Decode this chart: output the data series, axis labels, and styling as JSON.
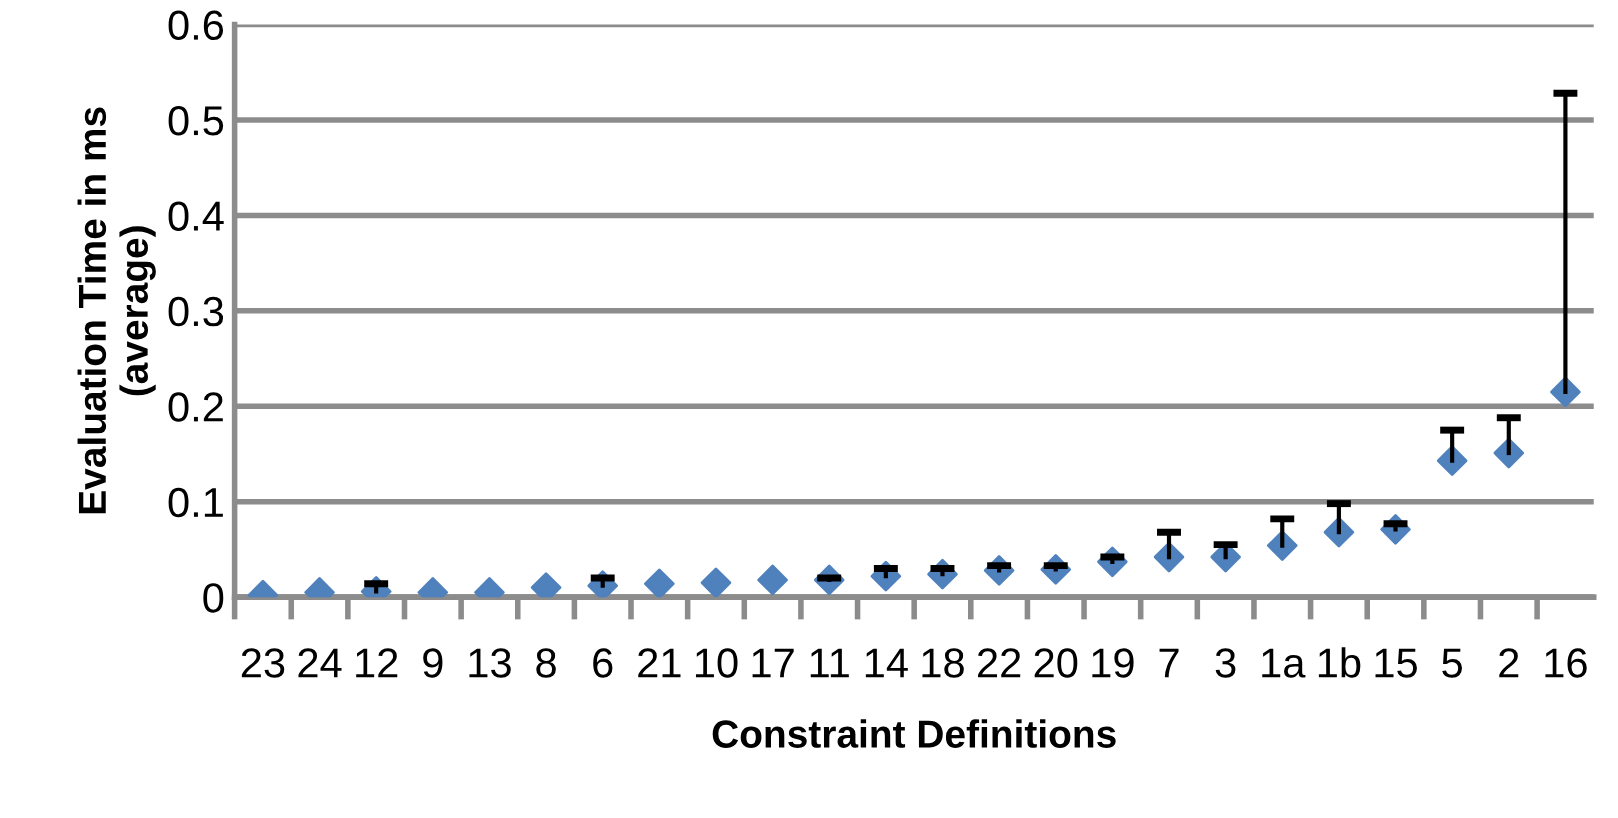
{
  "chart_data": {
    "type": "scatter",
    "xlabel": "Constraint Definitions",
    "ylabel": "Evaluation Time in ms\n(average)",
    "categories": [
      "23",
      "24",
      "12",
      "9",
      "13",
      "8",
      "6",
      "21",
      "10",
      "17",
      "11",
      "14",
      "18",
      "22",
      "20",
      "19",
      "7",
      "3",
      "1a",
      "1b",
      "15",
      "5",
      "2",
      "16"
    ],
    "values": [
      0.002,
      0.005,
      0.006,
      0.005,
      0.005,
      0.01,
      0.012,
      0.014,
      0.015,
      0.018,
      0.018,
      0.022,
      0.024,
      0.028,
      0.029,
      0.037,
      0.042,
      0.042,
      0.054,
      0.068,
      0.071,
      0.143,
      0.151,
      0.215
    ],
    "errors": [
      null,
      null,
      [
        0.006,
        0.014
      ],
      null,
      null,
      null,
      [
        0.012,
        0.02
      ],
      null,
      null,
      null,
      [
        0.018,
        0.02
      ],
      [
        0.022,
        0.03
      ],
      [
        0.024,
        0.03
      ],
      [
        0.028,
        0.033
      ],
      [
        0.029,
        0.033
      ],
      [
        0.037,
        0.042
      ],
      [
        0.042,
        0.068
      ],
      [
        0.042,
        0.055
      ],
      [
        0.054,
        0.082
      ],
      [
        0.068,
        0.098
      ],
      [
        0.071,
        0.077
      ],
      [
        0.143,
        0.175
      ],
      [
        0.151,
        0.188
      ],
      [
        0.215,
        0.528
      ]
    ],
    "color": "#4f81bd",
    "marker": "diamond",
    "ylim": [
      0,
      0.6
    ],
    "yticks": [
      0,
      0.1,
      0.2,
      0.3,
      0.4,
      0.5,
      0.6
    ],
    "grid": "y",
    "legend": false
  }
}
